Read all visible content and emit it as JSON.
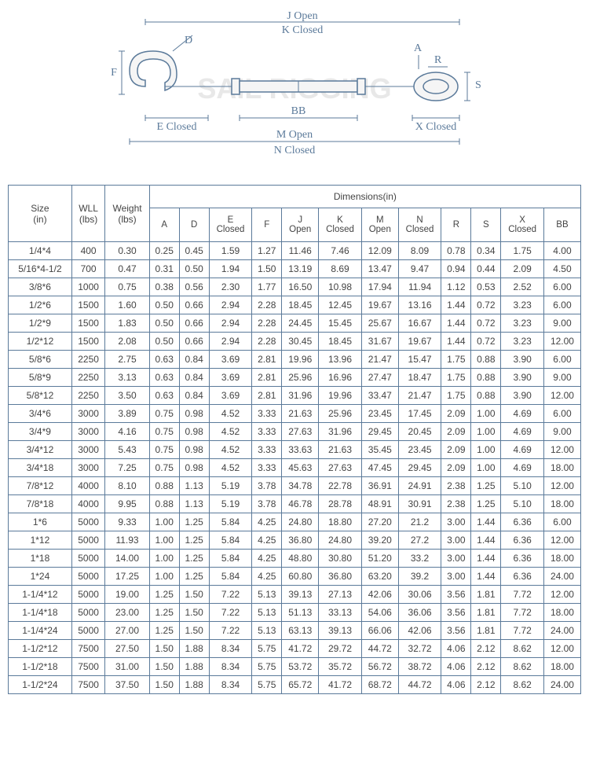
{
  "diagram": {
    "labels": {
      "j_open": "J Open",
      "k_closed": "K Closed",
      "a": "A",
      "r": "R",
      "s": "S",
      "d": "D",
      "f": "F",
      "e_closed": "E Closed",
      "bb": "BB",
      "x_closed": "X Closed",
      "m_open": "M Open",
      "n_closed": "N Closed"
    },
    "watermark": "SAIL RIGGING",
    "colors": {
      "line": "#5b7a9a",
      "text": "#5b7a9a",
      "watermark": "#e8e8e8"
    }
  },
  "table": {
    "header_dimensions": "Dimensions(in)",
    "columns": {
      "size": "Size\n(in)",
      "wll": "WLL\n(lbs)",
      "weight": "Weight\n(lbs)",
      "a": "A",
      "d": "D",
      "e_closed": "E\nClosed",
      "f": "F",
      "j_open": "J\nOpen",
      "k_closed": "K\nClosed",
      "m_open": "M\nOpen",
      "n_closed": "N\nClosed",
      "r": "R",
      "s": "S",
      "x_closed": "X\nClosed",
      "bb": "BB"
    },
    "rows": [
      [
        "1/4*4",
        "400",
        "0.30",
        "0.25",
        "0.45",
        "1.59",
        "1.27",
        "11.46",
        "7.46",
        "12.09",
        "8.09",
        "0.78",
        "0.34",
        "1.75",
        "4.00"
      ],
      [
        "5/16*4-1/2",
        "700",
        "0.47",
        "0.31",
        "0.50",
        "1.94",
        "1.50",
        "13.19",
        "8.69",
        "13.47",
        "9.47",
        "0.94",
        "0.44",
        "2.09",
        "4.50"
      ],
      [
        "3/8*6",
        "1000",
        "0.75",
        "0.38",
        "0.56",
        "2.30",
        "1.77",
        "16.50",
        "10.98",
        "17.94",
        "11.94",
        "1.12",
        "0.53",
        "2.52",
        "6.00"
      ],
      [
        "1/2*6",
        "1500",
        "1.60",
        "0.50",
        "0.66",
        "2.94",
        "2.28",
        "18.45",
        "12.45",
        "19.67",
        "13.16",
        "1.44",
        "0.72",
        "3.23",
        "6.00"
      ],
      [
        "1/2*9",
        "1500",
        "1.83",
        "0.50",
        "0.66",
        "2.94",
        "2.28",
        "24.45",
        "15.45",
        "25.67",
        "16.67",
        "1.44",
        "0.72",
        "3.23",
        "9.00"
      ],
      [
        "1/2*12",
        "1500",
        "2.08",
        "0.50",
        "0.66",
        "2.94",
        "2.28",
        "30.45",
        "18.45",
        "31.67",
        "19.67",
        "1.44",
        "0.72",
        "3.23",
        "12.00"
      ],
      [
        "5/8*6",
        "2250",
        "2.75",
        "0.63",
        "0.84",
        "3.69",
        "2.81",
        "19.96",
        "13.96",
        "21.47",
        "15.47",
        "1.75",
        "0.88",
        "3.90",
        "6.00"
      ],
      [
        "5/8*9",
        "2250",
        "3.13",
        "0.63",
        "0.84",
        "3.69",
        "2.81",
        "25.96",
        "16.96",
        "27.47",
        "18.47",
        "1.75",
        "0.88",
        "3.90",
        "9.00"
      ],
      [
        "5/8*12",
        "2250",
        "3.50",
        "0.63",
        "0.84",
        "3.69",
        "2.81",
        "31.96",
        "19.96",
        "33.47",
        "21.47",
        "1.75",
        "0.88",
        "3.90",
        "12.00"
      ],
      [
        "3/4*6",
        "3000",
        "3.89",
        "0.75",
        "0.98",
        "4.52",
        "3.33",
        "21.63",
        "25.96",
        "23.45",
        "17.45",
        "2.09",
        "1.00",
        "4.69",
        "6.00"
      ],
      [
        "3/4*9",
        "3000",
        "4.16",
        "0.75",
        "0.98",
        "4.52",
        "3.33",
        "27.63",
        "31.96",
        "29.45",
        "20.45",
        "2.09",
        "1.00",
        "4.69",
        "9.00"
      ],
      [
        "3/4*12",
        "3000",
        "5.43",
        "0.75",
        "0.98",
        "4.52",
        "3.33",
        "33.63",
        "21.63",
        "35.45",
        "23.45",
        "2.09",
        "1.00",
        "4.69",
        "12.00"
      ],
      [
        "3/4*18",
        "3000",
        "7.25",
        "0.75",
        "0.98",
        "4.52",
        "3.33",
        "45.63",
        "27.63",
        "47.45",
        "29.45",
        "2.09",
        "1.00",
        "4.69",
        "18.00"
      ],
      [
        "7/8*12",
        "4000",
        "8.10",
        "0.88",
        "1.13",
        "5.19",
        "3.78",
        "34.78",
        "22.78",
        "36.91",
        "24.91",
        "2.38",
        "1.25",
        "5.10",
        "12.00"
      ],
      [
        "7/8*18",
        "4000",
        "9.95",
        "0.88",
        "1.13",
        "5.19",
        "3.78",
        "46.78",
        "28.78",
        "48.91",
        "30.91",
        "2.38",
        "1.25",
        "5.10",
        "18.00"
      ],
      [
        "1*6",
        "5000",
        "9.33",
        "1.00",
        "1.25",
        "5.84",
        "4.25",
        "24.80",
        "18.80",
        "27.20",
        "21.2",
        "3.00",
        "1.44",
        "6.36",
        "6.00"
      ],
      [
        "1*12",
        "5000",
        "11.93",
        "1.00",
        "1.25",
        "5.84",
        "4.25",
        "36.80",
        "24.80",
        "39.20",
        "27.2",
        "3.00",
        "1.44",
        "6.36",
        "12.00"
      ],
      [
        "1*18",
        "5000",
        "14.00",
        "1.00",
        "1.25",
        "5.84",
        "4.25",
        "48.80",
        "30.80",
        "51.20",
        "33.2",
        "3.00",
        "1.44",
        "6.36",
        "18.00"
      ],
      [
        "1*24",
        "5000",
        "17.25",
        "1.00",
        "1.25",
        "5.84",
        "4.25",
        "60.80",
        "36.80",
        "63.20",
        "39.2",
        "3.00",
        "1.44",
        "6.36",
        "24.00"
      ],
      [
        "1-1/4*12",
        "5000",
        "19.00",
        "1.25",
        "1.50",
        "7.22",
        "5.13",
        "39.13",
        "27.13",
        "42.06",
        "30.06",
        "3.56",
        "1.81",
        "7.72",
        "12.00"
      ],
      [
        "1-1/4*18",
        "5000",
        "23.00",
        "1.25",
        "1.50",
        "7.22",
        "5.13",
        "51.13",
        "33.13",
        "54.06",
        "36.06",
        "3.56",
        "1.81",
        "7.72",
        "18.00"
      ],
      [
        "1-1/4*24",
        "5000",
        "27.00",
        "1.25",
        "1.50",
        "7.22",
        "5.13",
        "63.13",
        "39.13",
        "66.06",
        "42.06",
        "3.56",
        "1.81",
        "7.72",
        "24.00"
      ],
      [
        "1-1/2*12",
        "7500",
        "27.50",
        "1.50",
        "1.88",
        "8.34",
        "5.75",
        "41.72",
        "29.72",
        "44.72",
        "32.72",
        "4.06",
        "2.12",
        "8.62",
        "12.00"
      ],
      [
        "1-1/2*18",
        "7500",
        "31.00",
        "1.50",
        "1.88",
        "8.34",
        "5.75",
        "53.72",
        "35.72",
        "56.72",
        "38.72",
        "4.06",
        "2.12",
        "8.62",
        "18.00"
      ],
      [
        "1-1/2*24",
        "7500",
        "37.50",
        "1.50",
        "1.88",
        "8.34",
        "5.75",
        "65.72",
        "41.72",
        "68.72",
        "44.72",
        "4.06",
        "2.12",
        "8.62",
        "24.00"
      ]
    ]
  }
}
